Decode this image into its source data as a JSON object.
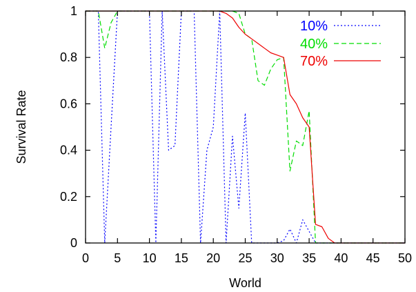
{
  "chart_data": {
    "type": "line",
    "xlabel": "World",
    "ylabel": "Survival Rate",
    "xlim": [
      0,
      50
    ],
    "ylim": [
      0,
      1
    ],
    "xticks": [
      "0",
      "5",
      "10",
      "15",
      "20",
      "25",
      "30",
      "35",
      "40",
      "45",
      "50"
    ],
    "yticks": [
      "0",
      "0.2",
      "0.4",
      "0.6",
      "0.8",
      "1"
    ],
    "grid": false,
    "legend_position": "top-right",
    "series": [
      {
        "name": "10%",
        "color": "#0000ff",
        "dash": "dotted",
        "x": [
          0,
          1,
          2,
          3,
          4,
          5,
          6,
          7,
          8,
          9,
          10,
          11,
          12,
          13,
          14,
          15,
          16,
          17,
          18,
          19,
          20,
          21,
          22,
          23,
          24,
          25,
          26,
          27,
          28,
          29,
          30,
          31,
          32,
          33,
          34,
          35,
          36,
          37,
          38,
          39,
          40,
          41,
          42,
          43,
          44,
          45,
          46,
          47,
          48,
          49,
          50
        ],
        "y": [
          1,
          1,
          1,
          0,
          0.5,
          1,
          1,
          1,
          1,
          1,
          1,
          0,
          1,
          0.4,
          0.42,
          1,
          1,
          1,
          0,
          0.4,
          0.5,
          1,
          0,
          0.46,
          0.15,
          0.56,
          0,
          0,
          0,
          0,
          0,
          0.01,
          0.06,
          0,
          0.1,
          0.05,
          0,
          0,
          0,
          0,
          0,
          0,
          0,
          0,
          0,
          0,
          0,
          0,
          0,
          0,
          0
        ]
      },
      {
        "name": "40%",
        "color": "#00dd00",
        "dash": "dashed",
        "x": [
          0,
          1,
          2,
          3,
          4,
          5,
          6,
          7,
          8,
          9,
          10,
          11,
          12,
          13,
          14,
          15,
          16,
          17,
          18,
          19,
          20,
          21,
          22,
          23,
          24,
          25,
          26,
          27,
          28,
          29,
          30,
          31,
          32,
          33,
          34,
          35,
          36,
          37,
          38,
          39,
          40,
          41,
          42,
          43,
          44,
          45,
          46,
          47,
          48,
          49,
          50
        ],
        "y": [
          1,
          1,
          1,
          0.84,
          0.95,
          1,
          1,
          1,
          1,
          1,
          1,
          1,
          1,
          1,
          1,
          1,
          1,
          1,
          1,
          1,
          1,
          1,
          1,
          1,
          0.99,
          0.9,
          0.88,
          0.7,
          0.68,
          0.75,
          0.79,
          0.8,
          0.31,
          0.44,
          0.42,
          0.57,
          0,
          0,
          0,
          0,
          0,
          0,
          0,
          0,
          0,
          0,
          0,
          0,
          0,
          0,
          0
        ]
      },
      {
        "name": "70%",
        "color": "#ee0000",
        "dash": "solid",
        "x": [
          0,
          1,
          2,
          3,
          4,
          5,
          6,
          7,
          8,
          9,
          10,
          11,
          12,
          13,
          14,
          15,
          16,
          17,
          18,
          19,
          20,
          21,
          22,
          23,
          24,
          25,
          26,
          27,
          28,
          29,
          30,
          31,
          32,
          33,
          34,
          35,
          36,
          37,
          38,
          39,
          40,
          41,
          42,
          43,
          44,
          45,
          46,
          47,
          48,
          49,
          50
        ],
        "y": [
          1,
          1,
          1,
          1,
          1,
          1,
          1,
          1,
          1,
          1,
          1,
          1,
          1,
          1,
          1,
          1,
          1,
          1,
          1,
          1,
          1,
          1,
          0.99,
          0.97,
          0.93,
          0.9,
          0.88,
          0.86,
          0.84,
          0.82,
          0.81,
          0.8,
          0.64,
          0.6,
          0.54,
          0.5,
          0.08,
          0.07,
          0.02,
          0,
          0,
          0,
          0,
          0,
          0,
          0,
          0,
          0,
          0,
          0,
          0
        ]
      }
    ]
  }
}
